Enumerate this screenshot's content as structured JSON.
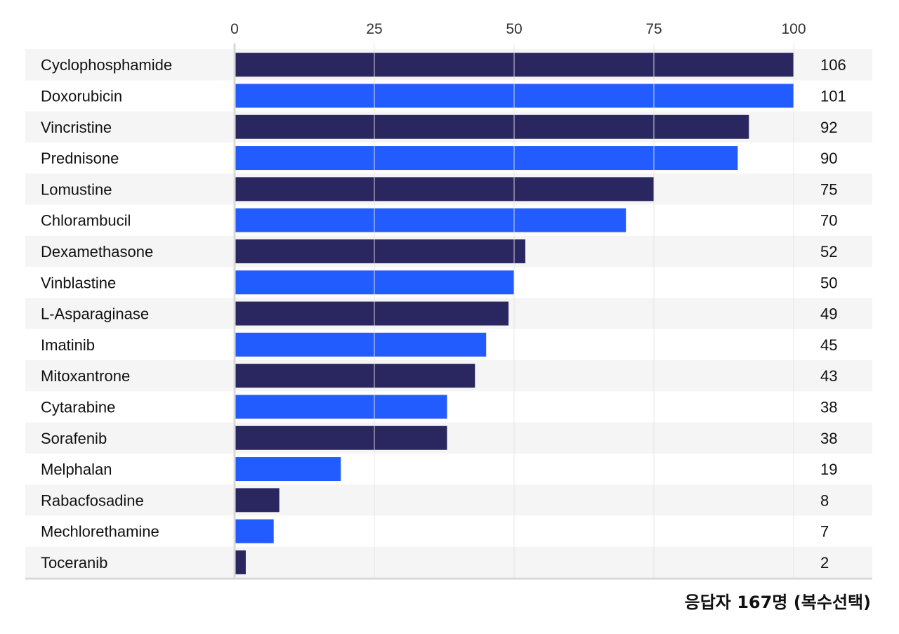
{
  "chart_data": {
    "type": "bar",
    "orientation": "horizontal",
    "categories": [
      "Cyclophosphamide",
      "Doxorubicin",
      "Vincristine",
      "Prednisone",
      "Lomustine",
      "Chlorambucil",
      "Dexamethasone",
      "Vinblastine",
      "L-Asparaginase",
      "Imatinib",
      "Mitoxantrone",
      "Cytarabine",
      "Sorafenib",
      "Melphalan",
      "Rabacfosadine",
      "Mechlorethamine",
      "Toceranib"
    ],
    "values": [
      106,
      101,
      92,
      90,
      75,
      70,
      52,
      50,
      49,
      45,
      43,
      38,
      38,
      19,
      8,
      7,
      2
    ],
    "value_labels": [
      "106",
      "101",
      "92",
      "90",
      "75",
      "70",
      "52",
      "50",
      "49",
      "45",
      "43",
      "38",
      "38",
      "19",
      "8",
      "7",
      "2"
    ],
    "x_ticks": [
      "0",
      "25",
      "50",
      "75",
      "100"
    ],
    "xlim": [
      0,
      100
    ],
    "grid": true,
    "bar_colors": [
      "#2a2660",
      "#225cff"
    ],
    "row_stripe_color": "#f5f5f5",
    "axis_color": "#d9d9d9",
    "gridline_color": "#e5e5e5",
    "footnote": "응답자 167명 (복수선택)"
  }
}
